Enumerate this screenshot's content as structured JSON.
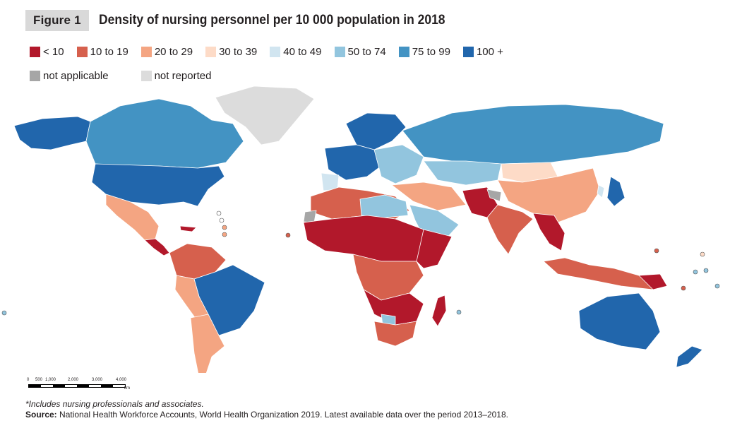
{
  "figure": {
    "label": "Figure 1",
    "title": "Density of nursing personnel per 10 000 population in 2018"
  },
  "legend": [
    {
      "label": "< 10",
      "color": "#b2182b"
    },
    {
      "label": "10 to 19",
      "color": "#d6604d"
    },
    {
      "label": "20 to 29",
      "color": "#f4a582"
    },
    {
      "label": "30 to 39",
      "color": "#fddbc7"
    },
    {
      "label": "40 to 49",
      "color": "#d1e5f0"
    },
    {
      "label": "50 to 74",
      "color": "#92c5de"
    },
    {
      "label": "75 to 99",
      "color": "#4393c3"
    },
    {
      "label": "100 +",
      "color": "#2166ac"
    },
    {
      "label": "not applicable",
      "color": "#a6a6a6"
    },
    {
      "label": "not reported",
      "color": "#dcdcdc"
    }
  ],
  "scale": {
    "ticks": [
      "0",
      "500",
      "1,000",
      "2,000",
      "3,000",
      "4,000"
    ],
    "unit": "km"
  },
  "footnote": "*Includes nursing professionals and associates.",
  "source": {
    "label": "Source:",
    "text": " National Health Workforce Accounts, World Health Organization 2019. Latest available data over the period 2013–2018."
  }
}
